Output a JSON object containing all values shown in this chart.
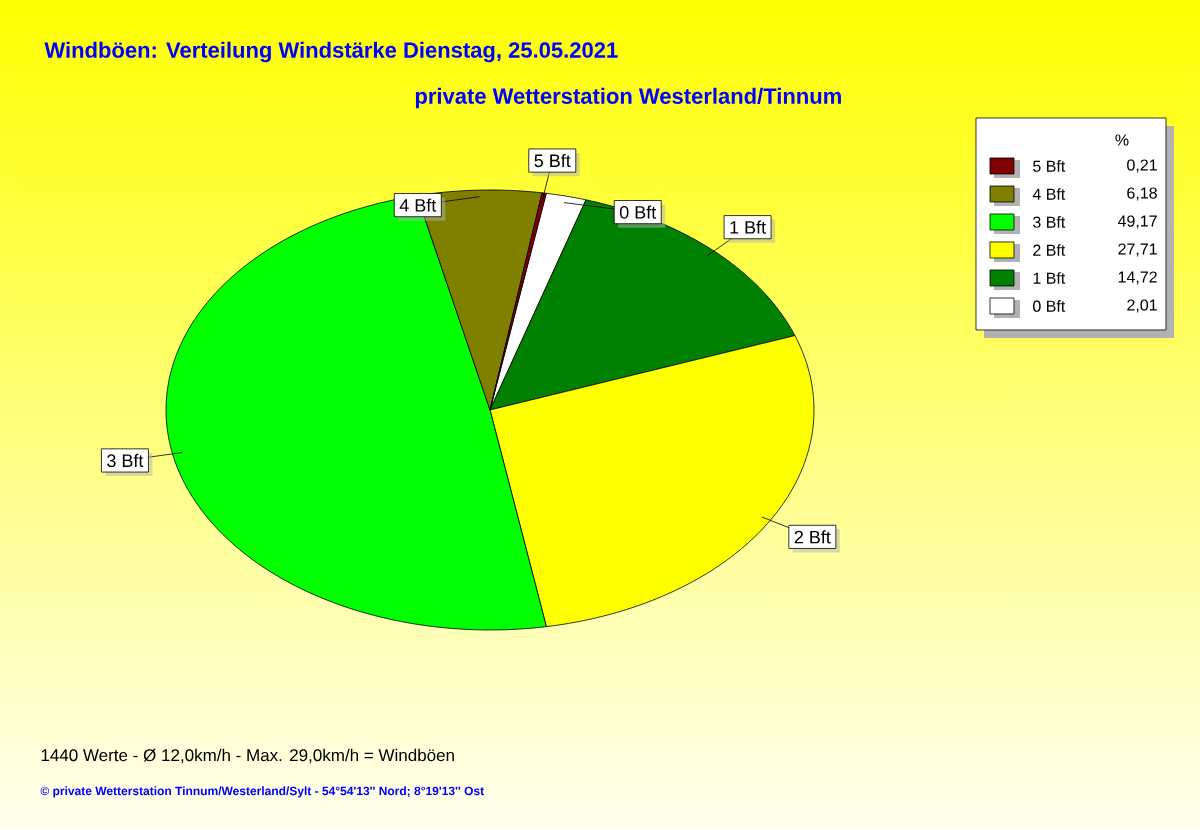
{
  "chart_data": {
    "type": "pie",
    "title": "Windböen: Verteilung Windstärke  Dienstag, 25.05.2021",
    "subtitle": "private Wetterstation Westerland/Tinnum",
    "categories": [
      "5 Bft",
      "4 Bft",
      "3 Bft",
      "2 Bft",
      "1 Bft",
      "0 Bft"
    ],
    "values": [
      0.21,
      6.18,
      49.17,
      27.71,
      14.72,
      2.01
    ],
    "value_labels": [
      "0,21",
      "6,18",
      "49,17",
      "27,71",
      "14,72",
      "2,01"
    ],
    "colors": [
      "#800000",
      "#808000",
      "#00ff00",
      "#ffff00",
      "#008000",
      "#ffffff"
    ],
    "legend": "top right",
    "legend_title": "%",
    "annotations": [
      "1440 Werte   -   Ø 12,0km/h  -  Max. 29,0km/h = Windböen",
      "© private Wetterstation Tinnum/Westerland/Sylt   -   54°54'13'' Nord; 8°19'13'' Ost"
    ]
  }
}
